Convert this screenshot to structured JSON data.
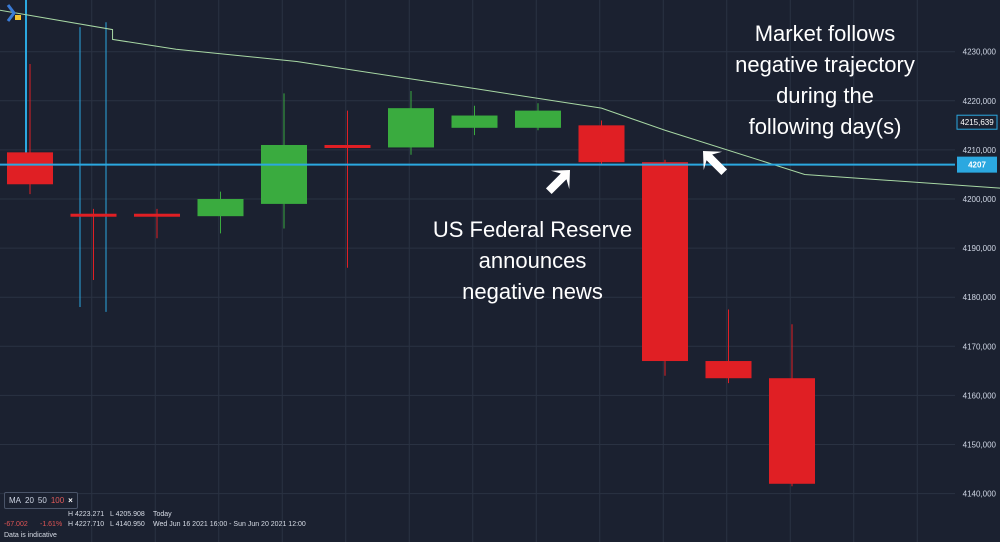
{
  "chart_data": {
    "type": "candlestick",
    "ylim": [
      4135,
      4240
    ],
    "yticks": [
      4140,
      4150,
      4160,
      4170,
      4180,
      4190,
      4200,
      4210,
      4220,
      4230
    ],
    "ytick_labels": [
      "4140,000",
      "4150,000",
      "4160,000",
      "4170,000",
      "4180,000",
      "4190,000",
      "4200,000",
      "4210,000",
      "4220,000",
      "4230,000"
    ],
    "grid": true,
    "candles": [
      {
        "open": 4209.5,
        "high": 4227.5,
        "low": 4201.0,
        "close": 4203.0
      },
      {
        "open": 4197.0,
        "high": 4198.0,
        "low": 4183.5,
        "close": 4196.5
      },
      {
        "open": 4197.0,
        "high": 4198.0,
        "low": 4192.0,
        "close": 4196.5
      },
      {
        "open": 4196.5,
        "high": 4201.5,
        "low": 4193.0,
        "close": 4200.0
      },
      {
        "open": 4199.0,
        "high": 4221.5,
        "low": 4194.0,
        "close": 4211.0
      },
      {
        "open": 4211.0,
        "high": 4218.0,
        "low": 4186.0,
        "close": 4210.5
      },
      {
        "open": 4210.5,
        "high": 4222.0,
        "low": 4209.0,
        "close": 4218.5
      },
      {
        "open": 4214.5,
        "high": 4219.0,
        "low": 4213.0,
        "close": 4217.0
      },
      {
        "open": 4214.5,
        "high": 4219.5,
        "low": 4214.0,
        "close": 4218.0
      },
      {
        "open": 4215.0,
        "high": 4216.0,
        "low": 4207.0,
        "close": 4207.5
      },
      {
        "open": 4207.5,
        "high": 4208.0,
        "low": 4164.0,
        "close": 4167.0
      },
      {
        "open": 4167.0,
        "high": 4177.5,
        "low": 4162.5,
        "close": 4163.5
      },
      {
        "open": 4163.5,
        "high": 4174.5,
        "low": 4141.5,
        "close": 4142.0
      }
    ],
    "moving_average": [
      {
        "i": -0.5,
        "v": 4238.5
      },
      {
        "i": 1.3,
        "v": 4234.5
      },
      {
        "i": 1.3,
        "v": 4232.5
      },
      {
        "i": 2.3,
        "v": 4230.5
      },
      {
        "i": 4.2,
        "v": 4228.0
      },
      {
        "i": 7.0,
        "v": 4222.5
      },
      {
        "i": 9.0,
        "v": 4218.5
      },
      {
        "i": 10.0,
        "v": 4214.0
      },
      {
        "i": 12.2,
        "v": 4205.0
      },
      {
        "i": 15.5,
        "v": 4202.0
      }
    ],
    "reference_line": {
      "value": 4207,
      "label": "4207"
    },
    "current_price_label": {
      "value": 4215.639,
      "label": "4215,639"
    },
    "left_outlines": [
      {
        "high": 4236.0,
        "low": 4186.0
      },
      {
        "high": 4235.0,
        "low": 4178.0
      },
      {
        "high": 4236.0,
        "low": 4177.0
      }
    ],
    "colors": {
      "up": "#3aab3f",
      "down": "#e01f24",
      "ma": "#a8d8a4",
      "reference": "#2ba8e0",
      "grid": "#2a3242",
      "axis_text": "#cfd6e4",
      "bg": "#1b2130"
    }
  },
  "annotations": {
    "market_follows": [
      "Market follows",
      "negative trajectory",
      "during the",
      "following day(s)"
    ],
    "fed": [
      "US Federal Reserve",
      "announces",
      "negative news"
    ]
  },
  "ma_bar": {
    "label": "MA",
    "p20": "20",
    "p50": "50",
    "p100": "100",
    "close": "×"
  },
  "info": {
    "h1": "H 4223.271",
    "l1": "L 4205.908",
    "period1": "Today",
    "change": "-67.002",
    "pct": "-1.61%",
    "h2": "H 4227.710",
    "l2": "L 4140.950",
    "period2": "Wed Jun 16 2021 16:00 - Sun Jun 20 2021 12:00",
    "note": "Data is indicative"
  }
}
